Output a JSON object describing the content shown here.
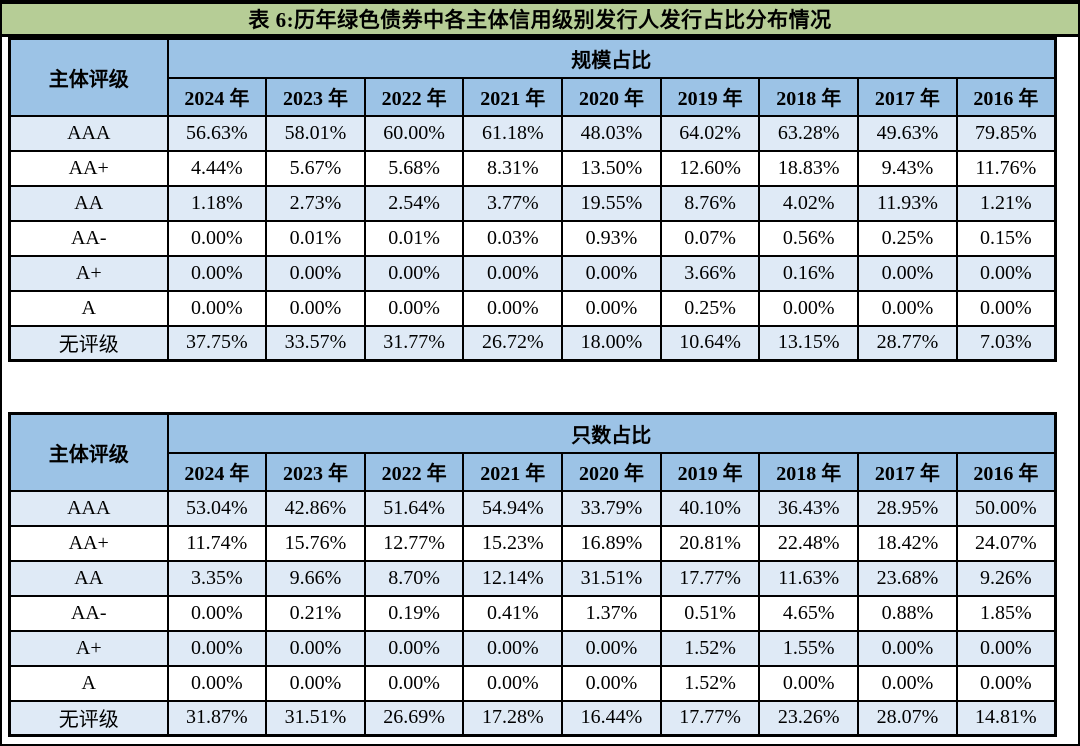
{
  "title": "表 6:历年绿色债券中各主体信用级别发行人发行占比分布情况",
  "colors": {
    "title_bg": "#b6cd96",
    "header_bg": "#9cc3e6",
    "stripe_bg": "#dfeaf6",
    "border": "#000000"
  },
  "tables": [
    {
      "corner_header": "主体评级",
      "group_header": "规模占比",
      "years": [
        "2024 年",
        "2023 年",
        "2022 年",
        "2021 年",
        "2020 年",
        "2019 年",
        "2018 年",
        "2017 年",
        "2016 年"
      ],
      "rows": [
        {
          "rating": "AAA",
          "values": [
            "56.63%",
            "58.01%",
            "60.00%",
            "61.18%",
            "48.03%",
            "64.02%",
            "63.28%",
            "49.63%",
            "79.85%"
          ]
        },
        {
          "rating": "AA+",
          "values": [
            "4.44%",
            "5.67%",
            "5.68%",
            "8.31%",
            "13.50%",
            "12.60%",
            "18.83%",
            "9.43%",
            "11.76%"
          ]
        },
        {
          "rating": "AA",
          "values": [
            "1.18%",
            "2.73%",
            "2.54%",
            "3.77%",
            "19.55%",
            "8.76%",
            "4.02%",
            "11.93%",
            "1.21%"
          ]
        },
        {
          "rating": "AA-",
          "values": [
            "0.00%",
            "0.01%",
            "0.01%",
            "0.03%",
            "0.93%",
            "0.07%",
            "0.56%",
            "0.25%",
            "0.15%"
          ]
        },
        {
          "rating": "A+",
          "values": [
            "0.00%",
            "0.00%",
            "0.00%",
            "0.00%",
            "0.00%",
            "3.66%",
            "0.16%",
            "0.00%",
            "0.00%"
          ]
        },
        {
          "rating": "A",
          "values": [
            "0.00%",
            "0.00%",
            "0.00%",
            "0.00%",
            "0.00%",
            "0.25%",
            "0.00%",
            "0.00%",
            "0.00%"
          ]
        },
        {
          "rating": "无评级",
          "values": [
            "37.75%",
            "33.57%",
            "31.77%",
            "26.72%",
            "18.00%",
            "10.64%",
            "13.15%",
            "28.77%",
            "7.03%"
          ]
        }
      ]
    },
    {
      "corner_header": "主体评级",
      "group_header": "只数占比",
      "years": [
        "2024 年",
        "2023 年",
        "2022 年",
        "2021 年",
        "2020 年",
        "2019 年",
        "2018 年",
        "2017 年",
        "2016 年"
      ],
      "rows": [
        {
          "rating": "AAA",
          "values": [
            "53.04%",
            "42.86%",
            "51.64%",
            "54.94%",
            "33.79%",
            "40.10%",
            "36.43%",
            "28.95%",
            "50.00%"
          ]
        },
        {
          "rating": "AA+",
          "values": [
            "11.74%",
            "15.76%",
            "12.77%",
            "15.23%",
            "16.89%",
            "20.81%",
            "22.48%",
            "18.42%",
            "24.07%"
          ]
        },
        {
          "rating": "AA",
          "values": [
            "3.35%",
            "9.66%",
            "8.70%",
            "12.14%",
            "31.51%",
            "17.77%",
            "11.63%",
            "23.68%",
            "9.26%"
          ]
        },
        {
          "rating": "AA-",
          "values": [
            "0.00%",
            "0.21%",
            "0.19%",
            "0.41%",
            "1.37%",
            "0.51%",
            "4.65%",
            "0.88%",
            "1.85%"
          ]
        },
        {
          "rating": "A+",
          "values": [
            "0.00%",
            "0.00%",
            "0.00%",
            "0.00%",
            "0.00%",
            "1.52%",
            "1.55%",
            "0.00%",
            "0.00%"
          ]
        },
        {
          "rating": "A",
          "values": [
            "0.00%",
            "0.00%",
            "0.00%",
            "0.00%",
            "0.00%",
            "1.52%",
            "0.00%",
            "0.00%",
            "0.00%"
          ]
        },
        {
          "rating": "无评级",
          "values": [
            "31.87%",
            "31.51%",
            "26.69%",
            "17.28%",
            "16.44%",
            "17.77%",
            "23.26%",
            "28.07%",
            "14.81%"
          ]
        }
      ]
    }
  ]
}
